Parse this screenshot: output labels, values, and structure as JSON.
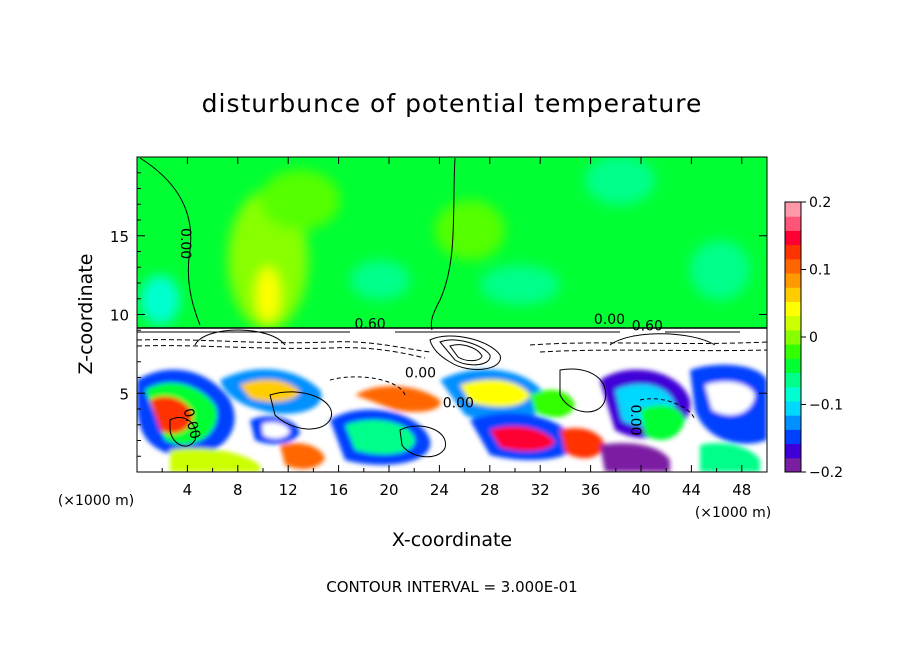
{
  "chart_data": {
    "type": "heatmap",
    "title": "disturbunce of potential temperature",
    "xlabel": "X-coordinate",
    "ylabel": "Z-coordinate",
    "x_unit_left": "(×1000 m)",
    "x_unit_right": "(×1000 m)",
    "xlim": [
      0,
      50
    ],
    "ylim": [
      0,
      20
    ],
    "x_ticks": [
      4,
      8,
      12,
      16,
      20,
      24,
      28,
      32,
      36,
      40,
      44,
      48
    ],
    "y_ticks": [
      5,
      10,
      15
    ],
    "colorbar": {
      "min": -0.2,
      "max": 0.2,
      "ticks": [
        "0.2",
        "0.1",
        "0",
        "−0.1",
        "−0.2"
      ],
      "colors": [
        "#7b1fa2",
        "#3f00d8",
        "#0040ff",
        "#0090ff",
        "#00d8ff",
        "#00ffd0",
        "#00ff8a",
        "#00ff33",
        "#33ff00",
        "#88ff00",
        "#ccff00",
        "#ffff00",
        "#ffcc00",
        "#ff9900",
        "#ff6600",
        "#ff3300",
        "#ff0033",
        "#ff5577",
        "#ff99aa"
      ]
    },
    "contour_labels": [
      {
        "text": "0.00",
        "x": 3.5,
        "y": 14.5,
        "angle": 90
      },
      {
        "text": "0.60",
        "x": 18.5,
        "y": 9.1,
        "angle": 0
      },
      {
        "text": "0.00",
        "x": 37.5,
        "y": 9.4,
        "angle": 0
      },
      {
        "text": "0.60",
        "x": 40.5,
        "y": 9.0,
        "angle": 0
      },
      {
        "text": "0.00",
        "x": 22.5,
        "y": 6.0,
        "angle": 0
      },
      {
        "text": "0.00",
        "x": 25.5,
        "y": 4.1,
        "angle": 0
      },
      {
        "text": "0.00",
        "x": 4.0,
        "y": 3.0,
        "angle": 75
      },
      {
        "text": "0.00",
        "x": 39.2,
        "y": 3.3,
        "angle": 90
      }
    ],
    "contour_interval_text": "CONTOUR INTERVAL = 3.000E-01"
  }
}
